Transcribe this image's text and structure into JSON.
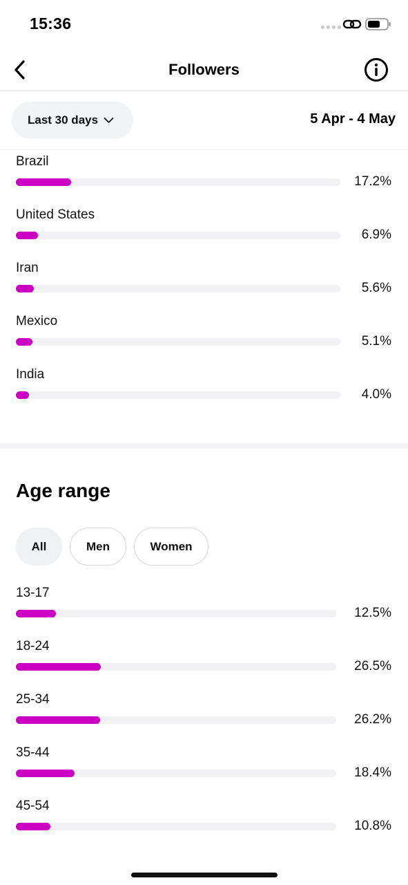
{
  "status_bar": {
    "time": "15:36",
    "link_icon": "link-icon",
    "battery_icon": "battery-icon"
  },
  "nav": {
    "title": "Followers",
    "back_icon": "chevron-left-icon",
    "info_icon": "info-icon"
  },
  "filters": {
    "period_label": "Last 30 days",
    "period_icon": "chevron-down-icon",
    "date_range": "5 Apr - 4 May"
  },
  "colors": {
    "accent": "#cc00c3",
    "track": "#f2f2f4"
  },
  "countries": [
    {
      "name": "Brazil",
      "value_label": "17.2%",
      "fraction": 0.172
    },
    {
      "name": "United States",
      "value_label": "6.9%",
      "fraction": 0.069
    },
    {
      "name": "Iran",
      "value_label": "5.6%",
      "fraction": 0.056
    },
    {
      "name": "Mexico",
      "value_label": "5.1%",
      "fraction": 0.051
    },
    {
      "name": "India",
      "value_label": "4.0%",
      "fraction": 0.04
    }
  ],
  "age_section": {
    "title": "Age range",
    "tabs": [
      {
        "label": "All",
        "active": true
      },
      {
        "label": "Men",
        "active": false
      },
      {
        "label": "Women",
        "active": false
      }
    ],
    "ranges": [
      {
        "name": "13-17",
        "value_label": "12.5%",
        "fraction": 0.125
      },
      {
        "name": "18-24",
        "value_label": "26.5%",
        "fraction": 0.265
      },
      {
        "name": "25-34",
        "value_label": "26.2%",
        "fraction": 0.262
      },
      {
        "name": "35-44",
        "value_label": "18.4%",
        "fraction": 0.184
      },
      {
        "name": "45-54",
        "value_label": "10.8%",
        "fraction": 0.108
      }
    ]
  }
}
